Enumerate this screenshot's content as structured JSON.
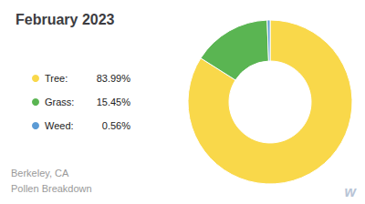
{
  "chart_data": {
    "type": "pie",
    "title": "February 2023",
    "subtitle": [
      "Berkeley, CA",
      "Pollen Breakdown"
    ],
    "annotations": [
      "w"
    ],
    "categories": [
      "Tree:",
      "Grass:",
      "Weed:"
    ],
    "values": [
      83.99,
      15.45,
      0.56
    ],
    "value_labels": [
      "83.99%",
      "15.45%",
      "0.56%"
    ],
    "colors": [
      "#f9d84a",
      "#5ab552",
      "#5b9bd5"
    ],
    "legend": "left"
  }
}
